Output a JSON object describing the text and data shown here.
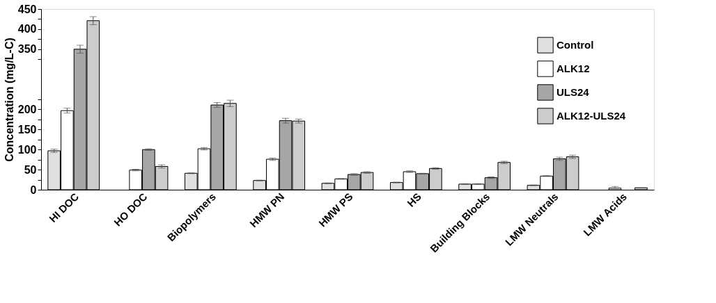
{
  "chart_data": {
    "type": "bar",
    "ylabel": "Concentration (mg/L-C)",
    "categories": [
      "HI DOC",
      "HO DOC",
      "Biopolymers",
      "HMW PN",
      "HMW PS",
      "HS",
      "Building Blocks",
      "LMW Neutrals",
      "LMW Acids"
    ],
    "series": [
      {
        "name": "Control",
        "color": "#e0e0e0",
        "values": [
          97,
          null,
          41,
          23,
          16,
          18,
          14,
          11,
          null
        ],
        "errors": [
          4,
          null,
          1,
          1,
          1,
          1,
          1,
          1,
          null
        ]
      },
      {
        "name": "ALK12",
        "color": "#ffffff",
        "values": [
          197,
          49,
          102,
          76,
          27,
          45,
          14,
          34,
          4
        ],
        "errors": [
          6,
          2,
          3,
          3,
          1,
          2,
          1,
          1,
          [
            4,
            8
          ]
        ]
      },
      {
        "name": "ULS24",
        "color": "#a6a6a6",
        "values": [
          350,
          100,
          211,
          172,
          38,
          40,
          30,
          77,
          null
        ],
        "errors": [
          10,
          2,
          6,
          6,
          2,
          1,
          2,
          4,
          null
        ]
      },
      {
        "name": "ALK12-ULS24",
        "color": "#cccccc",
        "values": [
          421,
          58,
          215,
          171,
          43,
          53,
          68,
          82,
          5
        ],
        "errors": [
          10,
          4,
          8,
          5,
          2,
          2,
          3,
          4,
          null
        ]
      }
    ],
    "ylim": [
      0,
      450
    ],
    "yticks": [
      0,
      {
        "value": 25,
        "label": null
      },
      50,
      {
        "value": 75,
        "label": null
      },
      100,
      {
        "value": 125,
        "label": null
      },
      150,
      {
        "value": 175,
        "label": null
      },
      200,
      {
        "value": 225,
        "label": null
      },
      {
        "value": 325,
        "label": null
      },
      350,
      {
        "value": 375,
        "label": null
      },
      400,
      {
        "value": 425,
        "label": null
      },
      450
    ],
    "legend": "top right",
    "grid": false
  }
}
